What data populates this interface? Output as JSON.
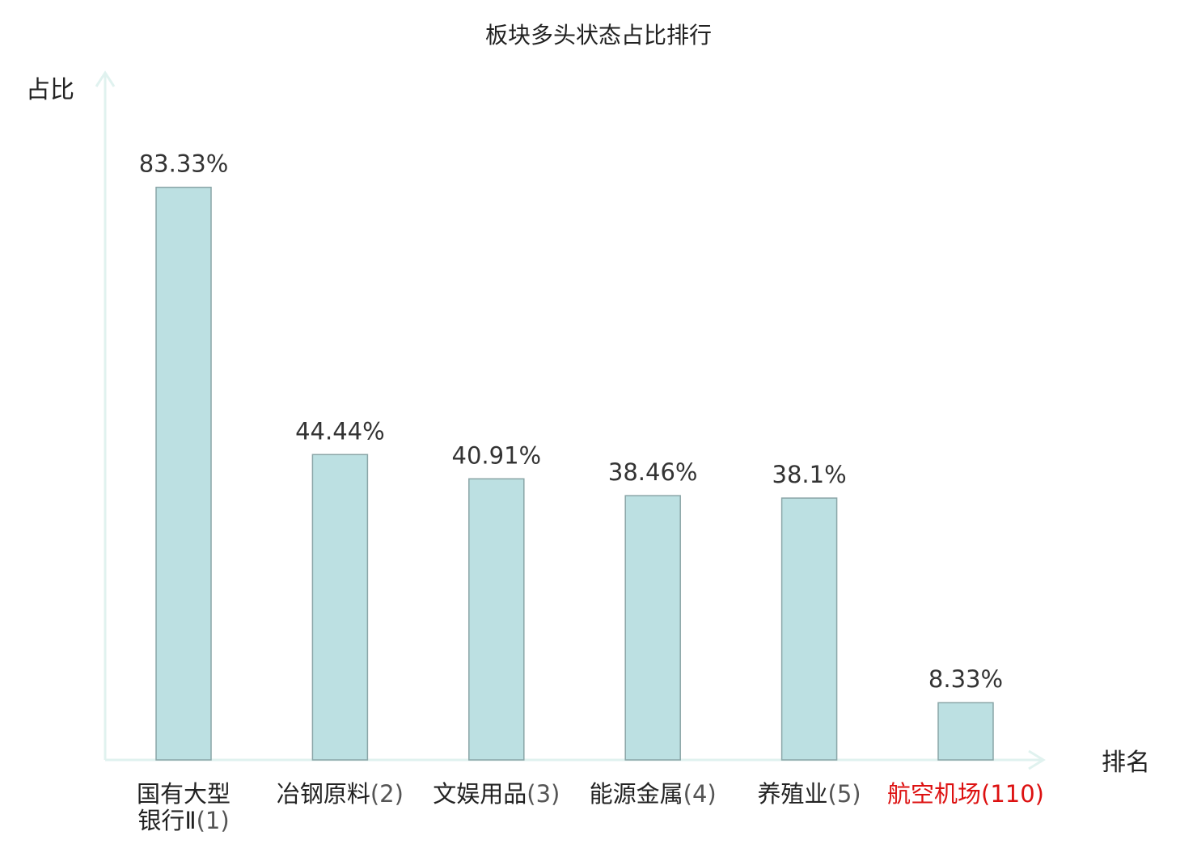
{
  "chart_data": {
    "type": "bar",
    "title": "板块多头状态占比排行",
    "ylabel": "占比",
    "xlabel": "排名",
    "ylim": [
      0,
      100
    ],
    "grid": false,
    "categories": [
      {
        "name_lines": [
          "国有大型",
          "银行Ⅱ"
        ],
        "rank": "(1)",
        "highlight": false
      },
      {
        "name_lines": [
          "冶钢原料"
        ],
        "rank": "(2)",
        "highlight": false
      },
      {
        "name_lines": [
          "文娱用品"
        ],
        "rank": "(3)",
        "highlight": false
      },
      {
        "name_lines": [
          "能源金属"
        ],
        "rank": "(4)",
        "highlight": false
      },
      {
        "name_lines": [
          "养殖业"
        ],
        "rank": "(5)",
        "highlight": false
      },
      {
        "name_lines": [
          "航空机场"
        ],
        "rank": "(110)",
        "highlight": true
      }
    ],
    "values": [
      83.33,
      44.44,
      40.91,
      38.46,
      38.1,
      8.33
    ],
    "value_labels": [
      "83.33%",
      "44.44%",
      "40.91%",
      "38.46%",
      "38.1%",
      "8.33%"
    ],
    "colors": {
      "bar_fill": "#bce0e2",
      "bar_stroke": "#8aa5a7",
      "axis": "#e0f2ef",
      "label_text": "#222222",
      "rank_text": "#555555",
      "highlight_text": "#dd1111"
    }
  }
}
